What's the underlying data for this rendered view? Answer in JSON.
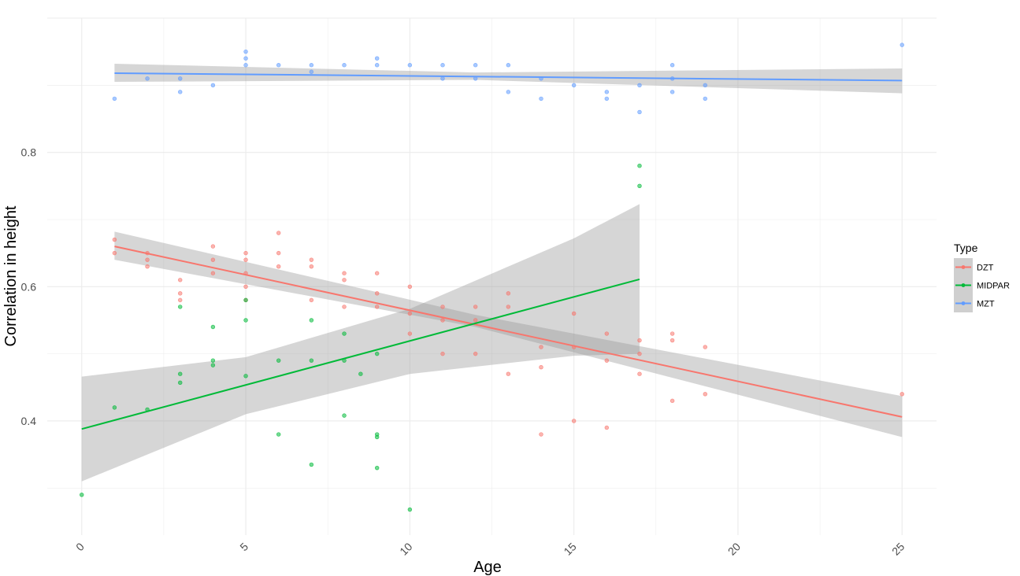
{
  "chart_data": {
    "type": "scatter",
    "title": "",
    "xlabel": "Age",
    "ylabel": "Correlation in height",
    "xlim": [
      -1.05,
      26.05
    ],
    "ylim": [
      0.23,
      1.0
    ],
    "x_ticks": [
      0,
      5,
      10,
      15,
      20,
      25
    ],
    "y_ticks": [
      0.4,
      0.6,
      0.8
    ],
    "grid": true,
    "legend": {
      "title": "Type",
      "position": "right",
      "entries": [
        "DZT",
        "MIDPAR",
        "MZT"
      ]
    },
    "series": [
      {
        "name": "DZT",
        "color": "#f8766d",
        "points": [
          [
            1,
            0.67
          ],
          [
            1,
            0.65
          ],
          [
            2,
            0.65
          ],
          [
            2,
            0.64
          ],
          [
            2,
            0.63
          ],
          [
            3,
            0.61
          ],
          [
            3,
            0.59
          ],
          [
            3,
            0.58
          ],
          [
            4,
            0.66
          ],
          [
            4,
            0.64
          ],
          [
            4,
            0.62
          ],
          [
            5,
            0.65
          ],
          [
            5,
            0.64
          ],
          [
            5,
            0.62
          ],
          [
            5,
            0.6
          ],
          [
            5,
            0.58
          ],
          [
            6,
            0.68
          ],
          [
            6,
            0.65
          ],
          [
            6,
            0.63
          ],
          [
            7,
            0.64
          ],
          [
            7,
            0.63
          ],
          [
            7,
            0.58
          ],
          [
            8,
            0.62
          ],
          [
            8,
            0.61
          ],
          [
            8,
            0.57
          ],
          [
            9,
            0.62
          ],
          [
            9,
            0.59
          ],
          [
            9,
            0.57
          ],
          [
            10,
            0.6
          ],
          [
            10,
            0.56
          ],
          [
            10,
            0.53
          ],
          [
            11,
            0.57
          ],
          [
            11,
            0.55
          ],
          [
            11,
            0.5
          ],
          [
            12,
            0.57
          ],
          [
            12,
            0.55
          ],
          [
            12,
            0.5
          ],
          [
            13,
            0.59
          ],
          [
            13,
            0.57
          ],
          [
            13,
            0.47
          ],
          [
            14,
            0.51
          ],
          [
            14,
            0.48
          ],
          [
            14,
            0.38
          ],
          [
            15,
            0.56
          ],
          [
            15,
            0.51
          ],
          [
            15,
            0.4
          ],
          [
            16,
            0.53
          ],
          [
            16,
            0.49
          ],
          [
            16,
            0.39
          ],
          [
            17,
            0.52
          ],
          [
            17,
            0.5
          ],
          [
            17,
            0.47
          ],
          [
            18,
            0.53
          ],
          [
            18,
            0.52
          ],
          [
            18,
            0.43
          ],
          [
            19,
            0.51
          ],
          [
            19,
            0.44
          ],
          [
            25,
            0.44
          ]
        ],
        "trend": {
          "x": [
            1,
            25
          ],
          "y": [
            0.66,
            0.406
          ]
        },
        "band": {
          "x": [
            1,
            12,
            25
          ],
          "lower": [
            0.64,
            0.54,
            0.376
          ],
          "upper": [
            0.682,
            0.558,
            0.437
          ]
        }
      },
      {
        "name": "MIDPAR",
        "color": "#00ba38",
        "points": [
          [
            0,
            0.29
          ],
          [
            1,
            0.42
          ],
          [
            2,
            0.417
          ],
          [
            3,
            0.57
          ],
          [
            3,
            0.47
          ],
          [
            3,
            0.457
          ],
          [
            4,
            0.54
          ],
          [
            4,
            0.49
          ],
          [
            4,
            0.483
          ],
          [
            5,
            0.58
          ],
          [
            5,
            0.55
          ],
          [
            5,
            0.467
          ],
          [
            6,
            0.49
          ],
          [
            6,
            0.38
          ],
          [
            7,
            0.55
          ],
          [
            7,
            0.49
          ],
          [
            7,
            0.335
          ],
          [
            8,
            0.53
          ],
          [
            8,
            0.49
          ],
          [
            8,
            0.408
          ],
          [
            8.5,
            0.47
          ],
          [
            9,
            0.5
          ],
          [
            9,
            0.38
          ],
          [
            9,
            0.376
          ],
          [
            9,
            0.33
          ],
          [
            10,
            0.268
          ],
          [
            17,
            0.78
          ],
          [
            17,
            0.75
          ]
        ],
        "trend": {
          "x": [
            0,
            17
          ],
          "y": [
            0.388,
            0.611
          ]
        },
        "band": {
          "x": [
            0,
            5,
            10,
            15,
            17
          ],
          "lower": [
            0.31,
            0.41,
            0.47,
            0.497,
            0.5
          ],
          "upper": [
            0.466,
            0.495,
            0.567,
            0.672,
            0.723
          ]
        }
      },
      {
        "name": "MZT",
        "color": "#619cff",
        "points": [
          [
            1,
            0.88
          ],
          [
            2,
            0.91
          ],
          [
            3,
            0.91
          ],
          [
            3,
            0.89
          ],
          [
            4,
            0.9
          ],
          [
            5,
            0.95
          ],
          [
            5,
            0.94
          ],
          [
            5,
            0.93
          ],
          [
            6,
            0.93
          ],
          [
            7,
            0.93
          ],
          [
            7,
            0.92
          ],
          [
            8,
            0.93
          ],
          [
            9,
            0.94
          ],
          [
            9,
            0.93
          ],
          [
            10,
            0.93
          ],
          [
            11,
            0.93
          ],
          [
            11,
            0.91
          ],
          [
            12,
            0.93
          ],
          [
            12,
            0.91
          ],
          [
            13,
            0.93
          ],
          [
            13,
            0.89
          ],
          [
            14,
            0.91
          ],
          [
            14,
            0.88
          ],
          [
            15,
            0.9
          ],
          [
            16,
            0.89
          ],
          [
            16,
            0.88
          ],
          [
            17,
            0.9
          ],
          [
            17,
            0.86
          ],
          [
            18,
            0.93
          ],
          [
            18,
            0.91
          ],
          [
            18,
            0.89
          ],
          [
            19,
            0.9
          ],
          [
            19,
            0.88
          ],
          [
            25,
            0.96
          ]
        ],
        "trend": {
          "x": [
            1,
            25
          ],
          "y": [
            0.918,
            0.907
          ]
        },
        "band": {
          "x": [
            1,
            12,
            25
          ],
          "lower": [
            0.905,
            0.908,
            0.888
          ],
          "upper": [
            0.932,
            0.919,
            0.925
          ]
        }
      }
    ]
  }
}
